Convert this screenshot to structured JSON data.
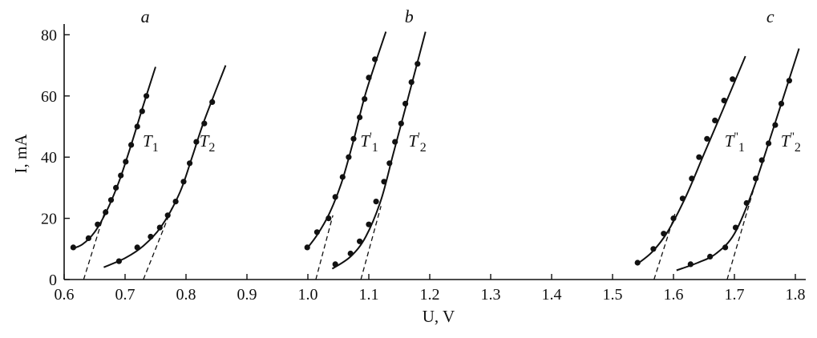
{
  "chart_data": {
    "type": "scatter",
    "xlabel": "U, V",
    "ylabel": "I, mA",
    "xlim": [
      0.6,
      1.8
    ],
    "ylim": [
      0,
      80
    ],
    "x_ticks": [
      0.6,
      0.7,
      0.8,
      0.9,
      1.0,
      1.1,
      1.2,
      1.3,
      1.4,
      1.5,
      1.6,
      1.7,
      1.8
    ],
    "x_tick_labels": [
      "0.6",
      "0.7",
      "0.8",
      "0.9",
      "1.0",
      "1.1",
      "1.2",
      "1.3",
      "1.4",
      "1.5",
      "1.6",
      "1.7",
      "1.8"
    ],
    "y_ticks": [
      0,
      20,
      40,
      60,
      80
    ],
    "y_tick_labels": [
      "0",
      "20",
      "40",
      "60",
      "80"
    ],
    "grid": false,
    "panels": [
      {
        "label": "a",
        "x": 0.733
      },
      {
        "label": "b",
        "x": 1.166
      },
      {
        "label": "c",
        "x": 1.759
      }
    ],
    "series": [
      {
        "name": "T1",
        "label_base": "T",
        "label_sup": "",
        "label_sub": "1",
        "label_at": [
          0.729,
          40
        ],
        "points": [
          [
            0.615,
            10.5
          ],
          [
            0.64,
            13.5
          ],
          [
            0.655,
            18
          ],
          [
            0.668,
            22
          ],
          [
            0.677,
            26
          ],
          [
            0.685,
            30
          ],
          [
            0.693,
            34
          ],
          [
            0.701,
            38.5
          ],
          [
            0.71,
            44
          ],
          [
            0.72,
            50
          ],
          [
            0.728,
            55
          ],
          [
            0.735,
            60
          ]
        ],
        "curve": [
          [
            0.612,
            10
          ],
          [
            0.63,
            11.5
          ],
          [
            0.65,
            15.5
          ],
          [
            0.67,
            22.5
          ],
          [
            0.69,
            32
          ],
          [
            0.71,
            44
          ],
          [
            0.73,
            57
          ],
          [
            0.75,
            69.5
          ]
        ],
        "asymptote": [
          [
            0.632,
            0
          ],
          [
            0.668,
            23
          ]
        ]
      },
      {
        "name": "T2",
        "label_base": "T",
        "label_sup": "",
        "label_sub": "2",
        "label_at": [
          0.822,
          40
        ],
        "points": [
          [
            0.69,
            6
          ],
          [
            0.72,
            10.5
          ],
          [
            0.742,
            14
          ],
          [
            0.757,
            17
          ],
          [
            0.77,
            21
          ],
          [
            0.783,
            25.5
          ],
          [
            0.796,
            32
          ],
          [
            0.806,
            38
          ],
          [
            0.817,
            45
          ],
          [
            0.83,
            51
          ],
          [
            0.843,
            58
          ]
        ],
        "curve": [
          [
            0.665,
            4
          ],
          [
            0.7,
            7
          ],
          [
            0.73,
            11
          ],
          [
            0.76,
            17.5
          ],
          [
            0.79,
            28.5
          ],
          [
            0.81,
            40
          ],
          [
            0.83,
            52
          ],
          [
            0.865,
            70
          ]
        ],
        "asymptote": [
          [
            0.73,
            0
          ],
          [
            0.778,
            24
          ]
        ]
      },
      {
        "name": "T1'",
        "label_base": "T",
        "label_sup": "'",
        "label_sub": "1",
        "label_at": [
          1.086,
          40
        ],
        "points": [
          [
            0.999,
            10.5
          ],
          [
            1.015,
            15.5
          ],
          [
            1.034,
            20
          ],
          [
            1.045,
            27
          ],
          [
            1.057,
            33.5
          ],
          [
            1.067,
            40
          ],
          [
            1.075,
            46
          ],
          [
            1.085,
            53
          ],
          [
            1.093,
            59
          ],
          [
            1.1,
            66
          ],
          [
            1.11,
            72
          ]
        ],
        "curve": [
          [
            0.998,
            10
          ],
          [
            1.015,
            14.5
          ],
          [
            1.035,
            21.5
          ],
          [
            1.055,
            31.5
          ],
          [
            1.075,
            45.5
          ],
          [
            1.095,
            61
          ],
          [
            1.128,
            81
          ]
        ],
        "asymptote": [
          [
            1.013,
            0
          ],
          [
            1.041,
            21
          ]
        ]
      },
      {
        "name": "T2'",
        "label_base": "T",
        "label_sup": "'",
        "label_sub": "2",
        "label_at": [
          1.165,
          40
        ],
        "points": [
          [
            1.045,
            5
          ],
          [
            1.07,
            8.5
          ],
          [
            1.085,
            12.5
          ],
          [
            1.1,
            18
          ],
          [
            1.112,
            25.5
          ],
          [
            1.125,
            32
          ],
          [
            1.134,
            38
          ],
          [
            1.143,
            45
          ],
          [
            1.153,
            51
          ],
          [
            1.16,
            57.5
          ],
          [
            1.17,
            64.5
          ],
          [
            1.18,
            70.5
          ]
        ],
        "curve": [
          [
            1.04,
            3.5
          ],
          [
            1.07,
            7.5
          ],
          [
            1.095,
            14
          ],
          [
            1.12,
            26
          ],
          [
            1.14,
            41
          ],
          [
            1.16,
            56
          ],
          [
            1.193,
            81
          ]
        ],
        "asymptote": [
          [
            1.087,
            0
          ],
          [
            1.12,
            24
          ]
        ]
      },
      {
        "name": "T1''",
        "label_base": "T",
        "label_sup": "''",
        "label_sub": "1",
        "label_at": [
          1.684,
          40
        ],
        "points": [
          [
            1.541,
            5.5
          ],
          [
            1.567,
            10
          ],
          [
            1.584,
            15
          ],
          [
            1.6,
            20
          ],
          [
            1.615,
            26.5
          ],
          [
            1.63,
            33
          ],
          [
            1.642,
            40
          ],
          [
            1.655,
            46
          ],
          [
            1.668,
            52
          ],
          [
            1.683,
            58.5
          ],
          [
            1.697,
            65.5
          ]
        ],
        "curve": [
          [
            1.54,
            5
          ],
          [
            1.565,
            9
          ],
          [
            1.59,
            15.5
          ],
          [
            1.62,
            27
          ],
          [
            1.65,
            41
          ],
          [
            1.68,
            55
          ],
          [
            1.718,
            73
          ]
        ],
        "asymptote": [
          [
            1.568,
            0
          ],
          [
            1.604,
            22.5
          ]
        ]
      },
      {
        "name": "T2''",
        "label_base": "T",
        "label_sup": "''",
        "label_sub": "2",
        "label_at": [
          1.776,
          40
        ],
        "points": [
          [
            1.628,
            5
          ],
          [
            1.66,
            7.5
          ],
          [
            1.685,
            10.5
          ],
          [
            1.702,
            17
          ],
          [
            1.72,
            25
          ],
          [
            1.735,
            33
          ],
          [
            1.745,
            39
          ],
          [
            1.756,
            44.5
          ],
          [
            1.767,
            50.5
          ],
          [
            1.777,
            57.5
          ],
          [
            1.79,
            65
          ]
        ],
        "curve": [
          [
            1.605,
            3
          ],
          [
            1.64,
            5.5
          ],
          [
            1.67,
            8.5
          ],
          [
            1.7,
            15
          ],
          [
            1.73,
            29
          ],
          [
            1.76,
            47
          ],
          [
            1.806,
            75.5
          ]
        ],
        "asymptote": [
          [
            1.688,
            0
          ],
          [
            1.733,
            30.5
          ]
        ]
      }
    ]
  }
}
